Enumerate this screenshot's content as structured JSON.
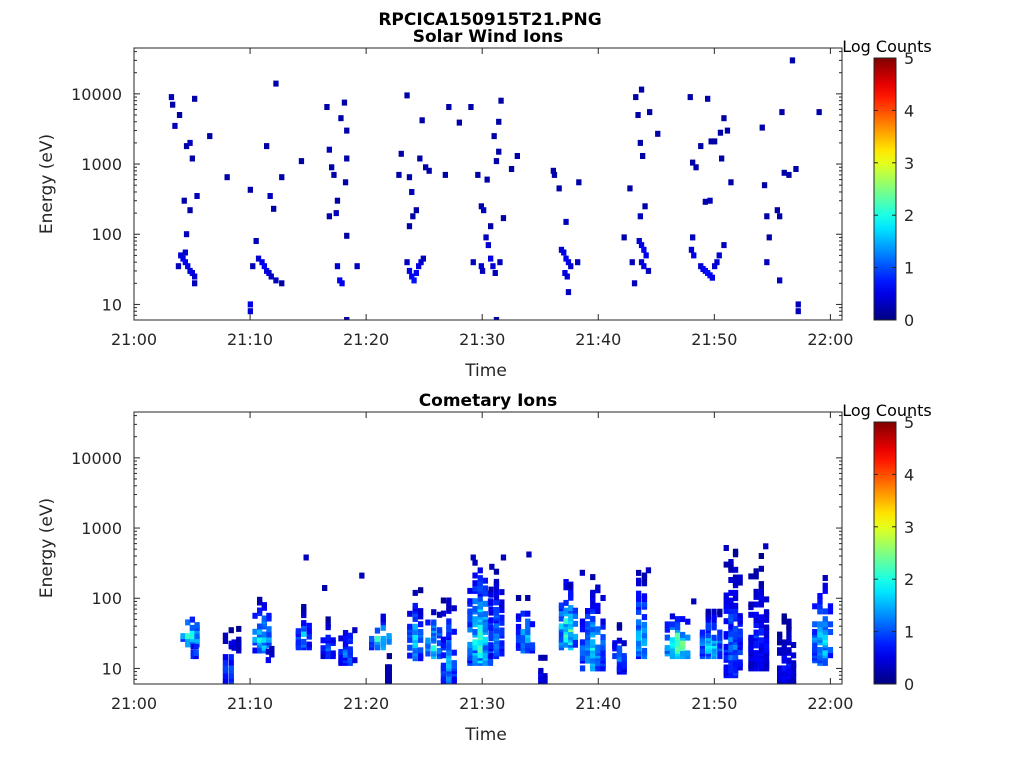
{
  "title": "RPCICA150915T21.PNG",
  "chart_data": [
    {
      "type": "heatmap",
      "title": "Solar Wind Ions",
      "xlabel": "Time",
      "ylabel": "Energy (eV)",
      "x_ticks": [
        "21:00",
        "21:10",
        "21:20",
        "21:30",
        "21:40",
        "21:50",
        "22:00"
      ],
      "x_range_min": [
        0,
        61
      ],
      "y_scale": "log",
      "y_ticks": [
        10,
        100,
        1000,
        10000
      ],
      "y_tick_labels": [
        "10",
        "100",
        "1000",
        "10000"
      ],
      "ylim": [
        6,
        45000
      ],
      "colorbar": {
        "label": "Log Counts",
        "range": [
          0,
          5
        ],
        "ticks": [
          "0",
          "1",
          "2",
          "3",
          "4",
          "5"
        ],
        "colormap": "jet"
      },
      "cells": [
        [
          3.0,
          9000,
          0.3
        ],
        [
          3.1,
          7000,
          0.2
        ],
        [
          3.3,
          3500,
          0.3
        ],
        [
          3.7,
          5000,
          0.2
        ],
        [
          4.3,
          1800,
          0.2
        ],
        [
          4.6,
          2000,
          0.3
        ],
        [
          5.0,
          8500,
          0.2
        ],
        [
          4.8,
          1200,
          0.2
        ],
        [
          5.2,
          350,
          0.3
        ],
        [
          6.3,
          2500,
          0.2
        ],
        [
          4.1,
          300,
          0.2
        ],
        [
          4.3,
          100,
          0.3
        ],
        [
          4.6,
          220,
          0.2
        ],
        [
          3.8,
          50,
          0.4
        ],
        [
          4.0,
          45,
          0.5
        ],
        [
          4.2,
          40,
          0.6
        ],
        [
          4.4,
          35,
          0.5
        ],
        [
          4.6,
          30,
          0.4
        ],
        [
          4.8,
          28,
          0.5
        ],
        [
          5.0,
          25,
          0.4
        ],
        [
          3.6,
          35,
          0.3
        ],
        [
          4.2,
          55,
          0.4
        ],
        [
          5.0,
          20,
          0.3
        ],
        [
          7.8,
          650,
          0.2
        ],
        [
          9.8,
          430,
          0.2
        ],
        [
          10.3,
          80,
          0.3
        ],
        [
          11.2,
          1800,
          0.2
        ],
        [
          11.5,
          350,
          0.3
        ],
        [
          12.0,
          14000,
          0.2
        ],
        [
          12.5,
          650,
          0.2
        ],
        [
          11.8,
          230,
          0.2
        ],
        [
          10.5,
          45,
          0.4
        ],
        [
          10.8,
          40,
          0.5
        ],
        [
          11.0,
          35,
          0.6
        ],
        [
          11.2,
          30,
          0.5
        ],
        [
          11.4,
          28,
          0.4
        ],
        [
          11.6,
          25,
          0.3
        ],
        [
          12.0,
          22,
          0.3
        ],
        [
          10.0,
          35,
          0.3
        ],
        [
          9.8,
          10,
          0.5
        ],
        [
          9.8,
          8,
          0.4
        ],
        [
          12.5,
          20,
          0.2
        ],
        [
          14.2,
          1100,
          0.2
        ],
        [
          16.4,
          6500,
          0.2
        ],
        [
          16.6,
          1600,
          0.3
        ],
        [
          16.8,
          900,
          0.2
        ],
        [
          17.0,
          700,
          0.2
        ],
        [
          17.3,
          300,
          0.2
        ],
        [
          17.6,
          4500,
          0.2
        ],
        [
          17.9,
          7500,
          0.2
        ],
        [
          18.1,
          3000,
          0.2
        ],
        [
          16.6,
          180,
          0.2
        ],
        [
          17.2,
          200,
          0.3
        ],
        [
          18.0,
          550,
          0.2
        ],
        [
          18.1,
          95,
          0.2
        ],
        [
          18.1,
          1200,
          0.2
        ],
        [
          17.3,
          35,
          0.4
        ],
        [
          17.5,
          22,
          0.6
        ],
        [
          17.7,
          20,
          0.5
        ],
        [
          19.0,
          35,
          0.3
        ],
        [
          18.1,
          6,
          0.2
        ],
        [
          22.8,
          1400,
          0.2
        ],
        [
          23.3,
          9500,
          0.2
        ],
        [
          23.5,
          650,
          0.2
        ],
        [
          23.7,
          400,
          0.3
        ],
        [
          23.8,
          180,
          0.2
        ],
        [
          24.1,
          220,
          0.2
        ],
        [
          24.4,
          1200,
          0.2
        ],
        [
          24.6,
          4200,
          0.2
        ],
        [
          24.9,
          900,
          0.2
        ],
        [
          25.2,
          800,
          0.2
        ],
        [
          26.9,
          6500,
          0.2
        ],
        [
          26.6,
          700,
          0.2
        ],
        [
          23.5,
          130,
          0.2
        ],
        [
          22.6,
          700,
          0.2
        ],
        [
          27.8,
          3900,
          0.2
        ],
        [
          23.5,
          30,
          0.5
        ],
        [
          23.7,
          25,
          0.6
        ],
        [
          23.9,
          22,
          0.7
        ],
        [
          24.1,
          28,
          0.6
        ],
        [
          24.3,
          35,
          0.5
        ],
        [
          24.5,
          40,
          0.4
        ],
        [
          24.7,
          45,
          0.3
        ],
        [
          23.3,
          40,
          0.3
        ],
        [
          28.8,
          6500,
          0.2
        ],
        [
          29.4,
          700,
          0.2
        ],
        [
          29.7,
          250,
          0.2
        ],
        [
          29.9,
          220,
          0.3
        ],
        [
          30.2,
          600,
          0.2
        ],
        [
          30.5,
          130,
          0.2
        ],
        [
          30.8,
          2500,
          0.2
        ],
        [
          31.0,
          1100,
          0.2
        ],
        [
          31.2,
          4000,
          0.2
        ],
        [
          31.4,
          8000,
          0.2
        ],
        [
          31.2,
          1500,
          0.2
        ],
        [
          32.3,
          850,
          0.2
        ],
        [
          32.8,
          1300,
          0.2
        ],
        [
          31.6,
          170,
          0.2
        ],
        [
          29.0,
          40,
          0.3
        ],
        [
          29.7,
          35,
          0.4
        ],
        [
          30.1,
          90,
          0.3
        ],
        [
          30.3,
          70,
          0.4
        ],
        [
          30.5,
          45,
          0.5
        ],
        [
          30.7,
          35,
          0.4
        ],
        [
          30.9,
          28,
          0.3
        ],
        [
          31.3,
          40,
          0.3
        ],
        [
          29.8,
          30,
          0.3
        ],
        [
          31.0,
          6,
          0.2
        ],
        [
          35.9,
          800,
          0.2
        ],
        [
          36.0,
          700,
          0.2
        ],
        [
          36.4,
          450,
          0.2
        ],
        [
          38.1,
          550,
          0.2
        ],
        [
          37.0,
          150,
          0.3
        ],
        [
          36.6,
          60,
          0.4
        ],
        [
          36.8,
          55,
          0.5
        ],
        [
          37.0,
          45,
          0.6
        ],
        [
          37.2,
          40,
          0.5
        ],
        [
          37.4,
          35,
          0.4
        ],
        [
          36.9,
          28,
          0.5
        ],
        [
          37.1,
          25,
          0.4
        ],
        [
          38.0,
          40,
          0.3
        ],
        [
          37.2,
          15,
          0.3
        ],
        [
          42.0,
          90,
          0.2
        ],
        [
          42.5,
          450,
          0.2
        ],
        [
          43.0,
          9000,
          0.2
        ],
        [
          43.2,
          5000,
          0.2
        ],
        [
          43.4,
          2000,
          0.2
        ],
        [
          43.5,
          11500,
          0.2
        ],
        [
          43.6,
          1300,
          0.2
        ],
        [
          43.8,
          250,
          0.2
        ],
        [
          44.2,
          5500,
          0.2
        ],
        [
          44.9,
          2700,
          0.2
        ],
        [
          43.4,
          180,
          0.3
        ],
        [
          43.3,
          80,
          0.4
        ],
        [
          43.5,
          70,
          0.5
        ],
        [
          43.7,
          60,
          0.6
        ],
        [
          43.9,
          50,
          0.5
        ],
        [
          43.5,
          40,
          0.4
        ],
        [
          43.7,
          35,
          0.5
        ],
        [
          44.1,
          30,
          0.3
        ],
        [
          42.7,
          40,
          0.3
        ],
        [
          42.9,
          20,
          0.3
        ],
        [
          47.7,
          9000,
          0.2
        ],
        [
          47.9,
          1050,
          0.2
        ],
        [
          48.2,
          900,
          0.2
        ],
        [
          48.6,
          1800,
          0.2
        ],
        [
          49.0,
          290,
          0.2
        ],
        [
          49.2,
          8500,
          0.2
        ],
        [
          49.5,
          2100,
          0.2
        ],
        [
          49.8,
          2100,
          0.2
        ],
        [
          50.3,
          2800,
          0.2
        ],
        [
          50.4,
          1200,
          0.2
        ],
        [
          50.6,
          4500,
          0.2
        ],
        [
          51.2,
          550,
          0.2
        ],
        [
          49.4,
          300,
          0.3
        ],
        [
          47.9,
          90,
          0.3
        ],
        [
          50.9,
          3000,
          0.2
        ],
        [
          47.8,
          60,
          0.4
        ],
        [
          48.0,
          50,
          0.5
        ],
        [
          48.6,
          35,
          0.4
        ],
        [
          48.8,
          32,
          0.5
        ],
        [
          49.0,
          30,
          0.6
        ],
        [
          49.2,
          28,
          0.7
        ],
        [
          49.4,
          26,
          0.6
        ],
        [
          49.6,
          24,
          0.5
        ],
        [
          49.8,
          35,
          0.4
        ],
        [
          50.0,
          40,
          0.4
        ],
        [
          50.2,
          50,
          0.4
        ],
        [
          50.6,
          70,
          0.3
        ],
        [
          53.9,
          3300,
          0.2
        ],
        [
          54.1,
          500,
          0.2
        ],
        [
          54.3,
          180,
          0.2
        ],
        [
          54.5,
          90,
          0.2
        ],
        [
          55.2,
          220,
          0.2
        ],
        [
          55.4,
          180,
          0.2
        ],
        [
          55.6,
          5500,
          0.2
        ],
        [
          55.8,
          750,
          0.2
        ],
        [
          56.2,
          700,
          0.2
        ],
        [
          56.5,
          30000,
          0.2
        ],
        [
          56.8,
          850,
          0.2
        ],
        [
          58.8,
          5500,
          0.2
        ],
        [
          54.3,
          40,
          0.3
        ],
        [
          55.4,
          22,
          0.3
        ],
        [
          57.0,
          10,
          0.3
        ],
        [
          57.0,
          8,
          0.3
        ]
      ]
    },
    {
      "type": "heatmap",
      "title": "Cometary Ions",
      "xlabel": "Time",
      "ylabel": "Energy (eV)",
      "x_ticks": [
        "21:00",
        "21:10",
        "21:20",
        "21:30",
        "21:40",
        "21:50",
        "22:00"
      ],
      "x_range_min": [
        0,
        61
      ],
      "y_scale": "log",
      "y_ticks": [
        10,
        100,
        1000,
        10000
      ],
      "y_tick_labels": [
        "10",
        "100",
        "1000",
        "10000"
      ],
      "ylim": [
        6,
        45000
      ],
      "colorbar": {
        "label": "Log Counts",
        "range": [
          0,
          5
        ],
        "ticks": [
          "0",
          "1",
          "2",
          "3",
          "4",
          "5"
        ],
        "colormap": "jet"
      },
      "blobs": [
        {
          "t": 4.6,
          "e_lo": 22,
          "e_hi": 65,
          "w": 1.6,
          "peak": 2.5
        },
        {
          "t": 5.0,
          "e_lo": 15,
          "e_hi": 25,
          "w": 0.5,
          "peak": 1.5
        },
        {
          "t": 7.9,
          "e_lo": 6,
          "e_hi": 35,
          "w": 1.0,
          "peak": 1.6
        },
        {
          "t": 8.6,
          "e_lo": 18,
          "e_hi": 40,
          "w": 0.8,
          "peak": 0.6
        },
        {
          "t": 10.8,
          "e_lo": 18,
          "e_hi": 95,
          "w": 1.6,
          "peak": 2.2
        },
        {
          "t": 11.5,
          "e_lo": 12,
          "e_hi": 25,
          "w": 0.6,
          "peak": 0.8
        },
        {
          "t": 14.4,
          "e_lo": 20,
          "e_hi": 75,
          "w": 1.4,
          "peak": 1.6
        },
        {
          "t": 16.5,
          "e_lo": 15,
          "e_hi": 50,
          "w": 1.3,
          "peak": 1.2
        },
        {
          "t": 18.2,
          "e_lo": 12,
          "e_hi": 50,
          "w": 1.6,
          "peak": 1.3
        },
        {
          "t": 21.0,
          "e_lo": 20,
          "e_hi": 60,
          "w": 2.0,
          "peak": 2.2
        },
        {
          "t": 21.7,
          "e_lo": 6,
          "e_hi": 18,
          "w": 0.3,
          "peak": 0.4
        },
        {
          "t": 24.0,
          "e_lo": 14,
          "e_hi": 130,
          "w": 1.4,
          "peak": 1.8
        },
        {
          "t": 25.6,
          "e_lo": 15,
          "e_hi": 75,
          "w": 1.5,
          "peak": 2.0
        },
        {
          "t": 26.9,
          "e_lo": 6,
          "e_hi": 120,
          "w": 1.4,
          "peak": 1.5
        },
        {
          "t": 29.6,
          "e_lo": 12,
          "e_hi": 380,
          "w": 2.2,
          "peak": 2.2
        },
        {
          "t": 31.0,
          "e_lo": 15,
          "e_hi": 260,
          "w": 1.4,
          "peak": 1.3
        },
        {
          "t": 33.5,
          "e_lo": 18,
          "e_hi": 110,
          "w": 1.6,
          "peak": 1.7
        },
        {
          "t": 35.0,
          "e_lo": 6,
          "e_hi": 20,
          "w": 0.7,
          "peak": 0.8
        },
        {
          "t": 37.2,
          "e_lo": 20,
          "e_hi": 220,
          "w": 1.6,
          "peak": 2.4
        },
        {
          "t": 39.3,
          "e_lo": 10,
          "e_hi": 200,
          "w": 2.2,
          "peak": 1.8
        },
        {
          "t": 41.6,
          "e_lo": 9,
          "e_hi": 45,
          "w": 1.2,
          "peak": 1.2
        },
        {
          "t": 43.5,
          "e_lo": 15,
          "e_hi": 250,
          "w": 1.0,
          "peak": 2.0
        },
        {
          "t": 46.6,
          "e_lo": 15,
          "e_hi": 60,
          "w": 2.2,
          "peak": 2.8
        },
        {
          "t": 49.5,
          "e_lo": 15,
          "e_hi": 70,
          "w": 2.0,
          "peak": 2.0
        },
        {
          "t": 51.4,
          "e_lo": 8,
          "e_hi": 500,
          "w": 1.6,
          "peak": 1.4
        },
        {
          "t": 53.6,
          "e_lo": 10,
          "e_hi": 400,
          "w": 1.8,
          "peak": 1.0
        },
        {
          "t": 56.0,
          "e_lo": 6,
          "e_hi": 60,
          "w": 1.6,
          "peak": 0.8
        },
        {
          "t": 59.1,
          "e_lo": 12,
          "e_hi": 250,
          "w": 1.8,
          "peak": 2.0
        }
      ],
      "cells": [
        [
          14.6,
          380,
          0.3
        ],
        [
          19.4,
          210,
          0.3
        ],
        [
          29.0,
          380,
          0.3
        ],
        [
          30.6,
          280,
          0.3
        ],
        [
          31.6,
          380,
          0.3
        ],
        [
          33.8,
          420,
          0.3
        ],
        [
          44.1,
          250,
          0.3
        ],
        [
          50.8,
          520,
          0.3
        ],
        [
          54.2,
          550,
          0.3
        ],
        [
          37.3,
          150,
          0.2
        ],
        [
          38.4,
          230,
          0.3
        ],
        [
          48.0,
          90,
          0.3
        ],
        [
          16.2,
          140,
          0.2
        ]
      ]
    }
  ]
}
